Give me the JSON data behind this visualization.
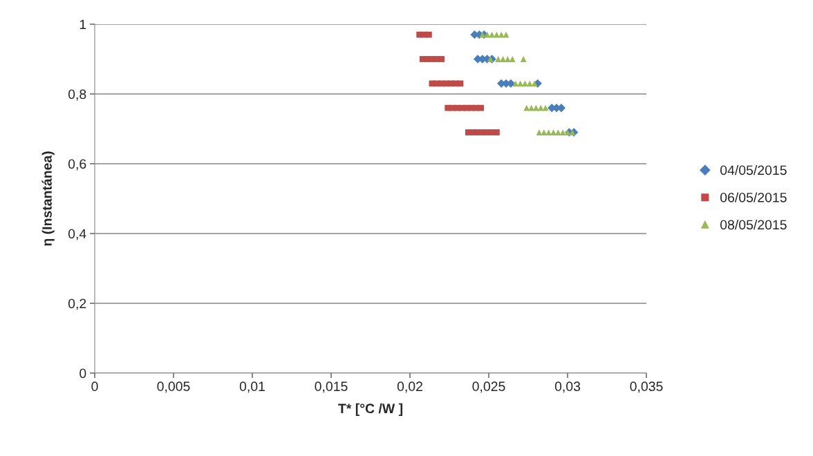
{
  "chart_data": {
    "type": "scatter",
    "xlabel": "T* [°C /W ]",
    "ylabel": "η (Instantánea)",
    "xlim": [
      0,
      0.035
    ],
    "ylim": [
      0,
      1
    ],
    "xticks": [
      0,
      {
        "value": 0.005,
        "label": "0,005"
      },
      {
        "value": 0.01,
        "label": "0,01"
      },
      {
        "value": 0.015,
        "label": "0,015"
      },
      {
        "value": 0.02,
        "label": "0,02"
      },
      {
        "value": 0.025,
        "label": "0,025"
      },
      {
        "value": 0.03,
        "label": "0,03"
      },
      {
        "value": 0.035,
        "label": "0,035"
      }
    ],
    "yticks": [
      0,
      {
        "value": 0.2,
        "label": "0,2"
      },
      {
        "value": 0.4,
        "label": "0,4"
      },
      {
        "value": 0.6,
        "label": "0,6"
      },
      {
        "value": 0.8,
        "label": "0,8"
      },
      1
    ],
    "grid": "y",
    "legend": "right",
    "series": [
      {
        "name": "04/05/2015",
        "color": "#4a7ebb",
        "marker": "diamond",
        "x": [
          0.0241,
          0.0244,
          0.0247,
          0.0243,
          0.0246,
          0.0249,
          0.0252,
          0.0258,
          0.0261,
          0.0264,
          0.0281,
          0.029,
          0.0293,
          0.0296,
          0.0301,
          0.0304
        ],
        "values": [
          0.97,
          0.97,
          0.97,
          0.9,
          0.9,
          0.9,
          0.9,
          0.83,
          0.83,
          0.83,
          0.83,
          0.76,
          0.76,
          0.76,
          0.69,
          0.69
        ]
      },
      {
        "name": "06/05/2015",
        "color": "#be4b48",
        "marker": "square",
        "x": [
          0.0206,
          0.0209,
          0.0212,
          0.0208,
          0.0211,
          0.0214,
          0.0217,
          0.022,
          0.0214,
          0.0217,
          0.022,
          0.0223,
          0.0226,
          0.0229,
          0.0232,
          0.0224,
          0.0227,
          0.023,
          0.0233,
          0.0236,
          0.0239,
          0.0242,
          0.0245,
          0.0237,
          0.024,
          0.0243,
          0.0246,
          0.0249,
          0.0252,
          0.0255
        ],
        "values": [
          0.97,
          0.97,
          0.97,
          0.9,
          0.9,
          0.9,
          0.9,
          0.9,
          0.83,
          0.83,
          0.83,
          0.83,
          0.83,
          0.83,
          0.83,
          0.76,
          0.76,
          0.76,
          0.76,
          0.76,
          0.76,
          0.76,
          0.76,
          0.69,
          0.69,
          0.69,
          0.69,
          0.69,
          0.69,
          0.69
        ]
      },
      {
        "name": "08/05/2015",
        "color": "#98b954",
        "marker": "triangle",
        "x": [
          0.0246,
          0.0249,
          0.0252,
          0.0255,
          0.0258,
          0.0261,
          0.0251,
          0.0256,
          0.0259,
          0.0262,
          0.0265,
          0.0272,
          0.0267,
          0.027,
          0.0273,
          0.0276,
          0.0279,
          0.0274,
          0.0277,
          0.028,
          0.0283,
          0.0286,
          0.0282,
          0.0285,
          0.0288,
          0.0291,
          0.0294,
          0.0297,
          0.03,
          0.0303
        ],
        "values": [
          0.97,
          0.97,
          0.97,
          0.97,
          0.97,
          0.97,
          0.9,
          0.9,
          0.9,
          0.9,
          0.9,
          0.9,
          0.83,
          0.83,
          0.83,
          0.83,
          0.83,
          0.76,
          0.76,
          0.76,
          0.76,
          0.76,
          0.69,
          0.69,
          0.69,
          0.69,
          0.69,
          0.69,
          0.69,
          0.69
        ]
      }
    ]
  }
}
